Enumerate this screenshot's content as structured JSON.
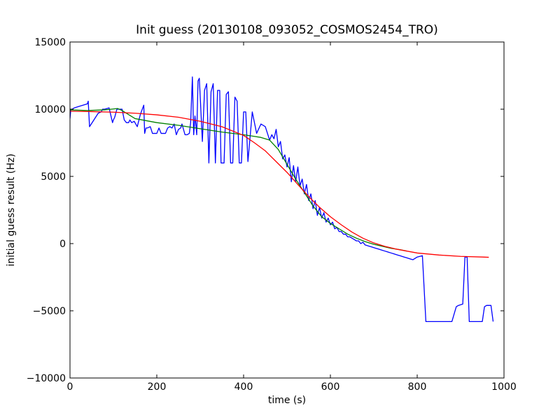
{
  "chart_data": {
    "type": "line",
    "title": "Init guess (20130108_093052_COSMOS2454_TRO)",
    "xlabel": "time (s)",
    "ylabel": "initial guess result (Hz)",
    "xlim": [
      0,
      1000
    ],
    "ylim": [
      -10000,
      15000
    ],
    "xticks": [
      0,
      200,
      400,
      600,
      800,
      1000
    ],
    "xtick_labels": [
      "0",
      "200",
      "400",
      "600",
      "800",
      "1000"
    ],
    "yticks": [
      -10000,
      -5000,
      0,
      5000,
      10000,
      15000
    ],
    "ytick_labels": [
      "−10000",
      "−5000",
      "0",
      "5000",
      "10000",
      "15000"
    ],
    "grid": false,
    "legend": "none",
    "series": [
      {
        "color": "#0000ff",
        "x": [
          0,
          2,
          5,
          10,
          20,
          30,
          40,
          42,
          45,
          55,
          65,
          72,
          75,
          80,
          90,
          98,
          100,
          103,
          108,
          115,
          120,
          125,
          130,
          135,
          138,
          142,
          148,
          155,
          162,
          170,
          172,
          175,
          178,
          185,
          190,
          200,
          205,
          210,
          220,
          225,
          230,
          235,
          240,
          245,
          250,
          255,
          258,
          265,
          270,
          275,
          278,
          282,
          285,
          288,
          292,
          295,
          298,
          305,
          310,
          315,
          320,
          325,
          330,
          335,
          340,
          345,
          348,
          355,
          360,
          365,
          370,
          375,
          380,
          385,
          390,
          395,
          400,
          405,
          410,
          420,
          430,
          440,
          450,
          460,
          465,
          470,
          475,
          480,
          485,
          490,
          495,
          500,
          505,
          510,
          515,
          520,
          525,
          530,
          535,
          540,
          545,
          550,
          555,
          560,
          565,
          570,
          575,
          580,
          585,
          590,
          595,
          600,
          605,
          610,
          615,
          620,
          625,
          630,
          635,
          640,
          645,
          650,
          655,
          660,
          665,
          670,
          675,
          680,
          685,
          690,
          695,
          700,
          705,
          710,
          715,
          720,
          725,
          730,
          735,
          740,
          745,
          750,
          755,
          760,
          765,
          770,
          775,
          780,
          785,
          790,
          800,
          812,
          820,
          860,
          880,
          890,
          895,
          905,
          910,
          915,
          920,
          930,
          940,
          950,
          955,
          960,
          970,
          975
        ],
        "y": [
          9300,
          10000,
          10000,
          10100,
          10200,
          10300,
          10400,
          10600,
          8700,
          9200,
          9700,
          9800,
          10000,
          10000,
          10100,
          9000,
          9200,
          9400,
          10000,
          10000,
          10000,
          9200,
          9000,
          9000,
          9200,
          9000,
          9100,
          8700,
          9600,
          10300,
          8200,
          8600,
          8600,
          8700,
          8200,
          8200,
          8600,
          8200,
          8200,
          8600,
          8700,
          8600,
          8900,
          8100,
          8500,
          8600,
          8900,
          8100,
          8100,
          8200,
          9000,
          12400,
          8100,
          9500,
          8100,
          12100,
          12300,
          7600,
          11400,
          11900,
          6000,
          11300,
          11900,
          6000,
          11400,
          11400,
          6000,
          6000,
          11100,
          11300,
          6000,
          6000,
          10900,
          10600,
          6000,
          6000,
          9800,
          9800,
          6100,
          9800,
          8200,
          8900,
          8700,
          7700,
          8100,
          7800,
          8500,
          7200,
          7600,
          6300,
          6600,
          5700,
          6400,
          4600,
          5800,
          4600,
          5700,
          4300,
          4800,
          3700,
          4400,
          3200,
          3700,
          2600,
          3200,
          2100,
          2700,
          1900,
          2300,
          1600,
          1900,
          1400,
          1600,
          1100,
          1200,
          900,
          900,
          700,
          700,
          500,
          500,
          400,
          300,
          200,
          200,
          0,
          100,
          -100,
          -150,
          -200,
          -250,
          -300,
          -350,
          -400,
          -450,
          -500,
          -550,
          -600,
          -650,
          -700,
          -750,
          -800,
          -850,
          -900,
          -950,
          -1000,
          -1050,
          -1100,
          -1150,
          -1200,
          -1000,
          -900,
          -5800,
          -5800,
          -5800,
          -4700,
          -4600,
          -4500,
          -1000,
          -1000,
          -5800,
          -5800,
          -5800,
          -5800,
          -4700,
          -4600,
          -4600,
          -5800
        ]
      },
      {
        "color": "#008000",
        "x": [
          0,
          40,
          80,
          110,
          120,
          150,
          200,
          250,
          300,
          350,
          400,
          420,
          440,
          460,
          480,
          500,
          520,
          540,
          560,
          580,
          600,
          620,
          640,
          660,
          680,
          700,
          720,
          740,
          760,
          775
        ],
        "y": [
          9950,
          9900,
          9950,
          10050,
          9900,
          9300,
          9000,
          8800,
          8550,
          8300,
          8100,
          8000,
          7900,
          7700,
          7000,
          5900,
          4800,
          3800,
          2800,
          2000,
          1500,
          1100,
          700,
          400,
          150,
          -50,
          -200,
          -350,
          -450,
          -550
        ]
      },
      {
        "color": "#ff0000",
        "x": [
          0,
          50,
          100,
          150,
          200,
          250,
          300,
          350,
          400,
          425,
          450,
          475,
          500,
          525,
          550,
          575,
          600,
          625,
          650,
          675,
          700,
          725,
          750,
          775,
          800,
          850,
          900,
          950,
          965
        ],
        "y": [
          9850,
          9820,
          9780,
          9700,
          9580,
          9400,
          9100,
          8700,
          8050,
          7500,
          6900,
          6100,
          5300,
          4400,
          3500,
          2700,
          2000,
          1400,
          850,
          400,
          50,
          -200,
          -400,
          -550,
          -700,
          -850,
          -950,
          -1000,
          -1020
        ]
      }
    ]
  }
}
